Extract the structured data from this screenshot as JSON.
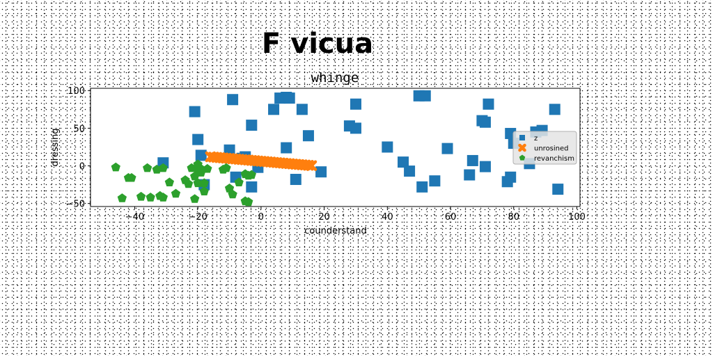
{
  "chart_data": {
    "type": "scatter",
    "suptitle": "F vicua",
    "title": "whinge",
    "xlabel": "counderstand",
    "ylabel": "dressing",
    "xlim": [
      -54,
      101
    ],
    "ylim": [
      -54,
      103
    ],
    "xticks": [
      -40,
      -20,
      0,
      20,
      40,
      60,
      80,
      100
    ],
    "yticks": [
      -50,
      0,
      50,
      100
    ],
    "xtick_labels": [
      "−40",
      "−20",
      "0",
      "20",
      "40",
      "60",
      "80",
      "100"
    ],
    "ytick_labels": [
      "−50",
      "0",
      "50",
      "100"
    ],
    "grid": false,
    "legend_position": "right",
    "series": [
      {
        "name": "z",
        "marker": "square",
        "color": "#1f77b4",
        "x": [
          -21,
          -20,
          -19,
          -18,
          -10,
          -9,
          -8,
          -6,
          -5,
          -3,
          -3,
          -1,
          4,
          6,
          8,
          8,
          9,
          11,
          13,
          15,
          19,
          28,
          30,
          30,
          40,
          45,
          47,
          50,
          52,
          51,
          55,
          59,
          66,
          67,
          70,
          71,
          71,
          72,
          78,
          79,
          79,
          80,
          85,
          87,
          89,
          93,
          94,
          -31
        ],
        "y": [
          72,
          35,
          14,
          -25,
          21,
          88,
          -15,
          10,
          12,
          -28,
          54,
          -2,
          75,
          90,
          91,
          24,
          90,
          -18,
          75,
          40,
          -8,
          53,
          50,
          82,
          25,
          5,
          -7,
          93,
          93,
          -28,
          -20,
          23,
          -12,
          7,
          60,
          58,
          -1,
          82,
          -21,
          -15,
          43,
          30,
          3,
          45,
          47,
          75,
          -31,
          4
        ]
      },
      {
        "name": "unrosined",
        "marker": "x",
        "color": "#ff7f0e",
        "x": [
          -16,
          -15,
          -14,
          -13,
          -12,
          -11,
          -10,
          -9,
          -8,
          -7,
          -6,
          -5,
          -4,
          -3,
          -2,
          -1,
          0,
          1,
          2,
          3,
          4,
          5,
          6,
          7,
          8,
          9,
          10,
          11,
          12,
          13,
          14,
          15,
          16
        ],
        "y": [
          12,
          11.6,
          11.2,
          10.9,
          10.5,
          10.1,
          9.8,
          9.4,
          9.1,
          8.7,
          8.3,
          8,
          7.6,
          7.2,
          6.9,
          6.5,
          6.1,
          5.8,
          5.4,
          5.1,
          4.7,
          4.3,
          4,
          3.6,
          3.2,
          2.9,
          2.5,
          2.1,
          1.8,
          1.4,
          1.1,
          0.7,
          0.3
        ]
      },
      {
        "name": "revanchism",
        "marker": "pentagon",
        "color": "#2ca02c",
        "x": [
          -46,
          -44,
          -42,
          -41,
          -38,
          -36,
          -35,
          -33,
          -32,
          -31,
          -31,
          -29,
          -27,
          -23,
          -22,
          -21,
          -21,
          -20,
          -20,
          -19,
          -19,
          -18,
          -18,
          -17,
          -12,
          -11,
          -10,
          -9,
          -7,
          -5,
          -5,
          -4,
          -4,
          -3,
          -20,
          -24
        ],
        "y": [
          -2,
          -43,
          -16,
          -16,
          -41,
          -3,
          -42,
          -5,
          -40,
          -42,
          -3,
          -22,
          -37,
          -24,
          -3,
          -44,
          -14,
          -5,
          -23,
          -9,
          -4,
          -23,
          -34,
          -4,
          -5,
          -3,
          -30,
          -38,
          -22,
          -47,
          -11,
          -13,
          -48,
          -12,
          2,
          -19
        ]
      }
    ]
  }
}
